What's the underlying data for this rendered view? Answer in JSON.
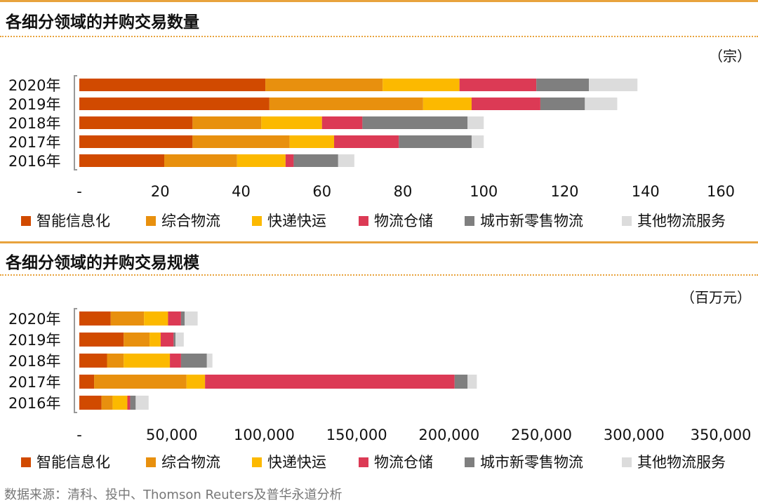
{
  "source": "数据来源：清科、投中、Thomson Reuters及普华永道分析",
  "colors": [
    "#D14A00",
    "#E8900E",
    "#FCB900",
    "#DC3A55",
    "#7F7F7F",
    "#DCDCDC"
  ],
  "chart_data": [
    {
      "type": "bar",
      "orientation": "horizontal",
      "stacked": true,
      "title": "各细分领域的并购交易数量",
      "unit": "（宗）",
      "categories": [
        "2020年",
        "2019年",
        "2018年",
        "2017年",
        "2016年"
      ],
      "xlim": [
        0,
        160
      ],
      "xticks": [
        "-",
        "20",
        "40",
        "60",
        "80",
        "100",
        "120",
        "140",
        "160"
      ],
      "legend_position": "bottom",
      "series": [
        {
          "name": "智能信息化",
          "values": [
            46,
            47,
            28,
            28,
            21
          ]
        },
        {
          "name": "综合物流",
          "values": [
            29,
            38,
            17,
            24,
            18
          ]
        },
        {
          "name": "快递快运",
          "values": [
            19,
            12,
            15,
            11,
            12
          ]
        },
        {
          "name": "物流仓储",
          "values": [
            19,
            17,
            10,
            16,
            2
          ]
        },
        {
          "name": "城市新零售物流",
          "values": [
            13,
            11,
            26,
            18,
            11
          ]
        },
        {
          "name": "其他物流服务",
          "values": [
            12,
            8,
            4,
            3,
            4
          ]
        }
      ]
    },
    {
      "type": "bar",
      "orientation": "horizontal",
      "stacked": true,
      "title": "各细分领域的并购交易规模",
      "unit": "（百万元）",
      "categories": [
        "2020年",
        "2019年",
        "2018年",
        "2017年",
        "2016年"
      ],
      "xlim": [
        0,
        350000
      ],
      "xticks": [
        "-",
        "50,000",
        "100,000",
        "150,000",
        "200,000",
        "250,000",
        "300,000",
        "350,000"
      ],
      "legend_position": "bottom",
      "series": [
        {
          "name": "智能信息化",
          "values": [
            17000,
            24000,
            15000,
            8000,
            12000
          ]
        },
        {
          "name": "综合物流",
          "values": [
            18000,
            14000,
            9000,
            50000,
            6000
          ]
        },
        {
          "name": "快递快运",
          "values": [
            13000,
            6000,
            25000,
            10000,
            8000
          ]
        },
        {
          "name": "物流仓储",
          "values": [
            7000,
            7000,
            6000,
            135000,
            1500
          ]
        },
        {
          "name": "城市新零售物流",
          "values": [
            2000,
            1000,
            14000,
            7000,
            3000
          ]
        },
        {
          "name": "其他物流服务",
          "values": [
            7000,
            4500,
            3000,
            5000,
            7000
          ]
        }
      ]
    }
  ]
}
